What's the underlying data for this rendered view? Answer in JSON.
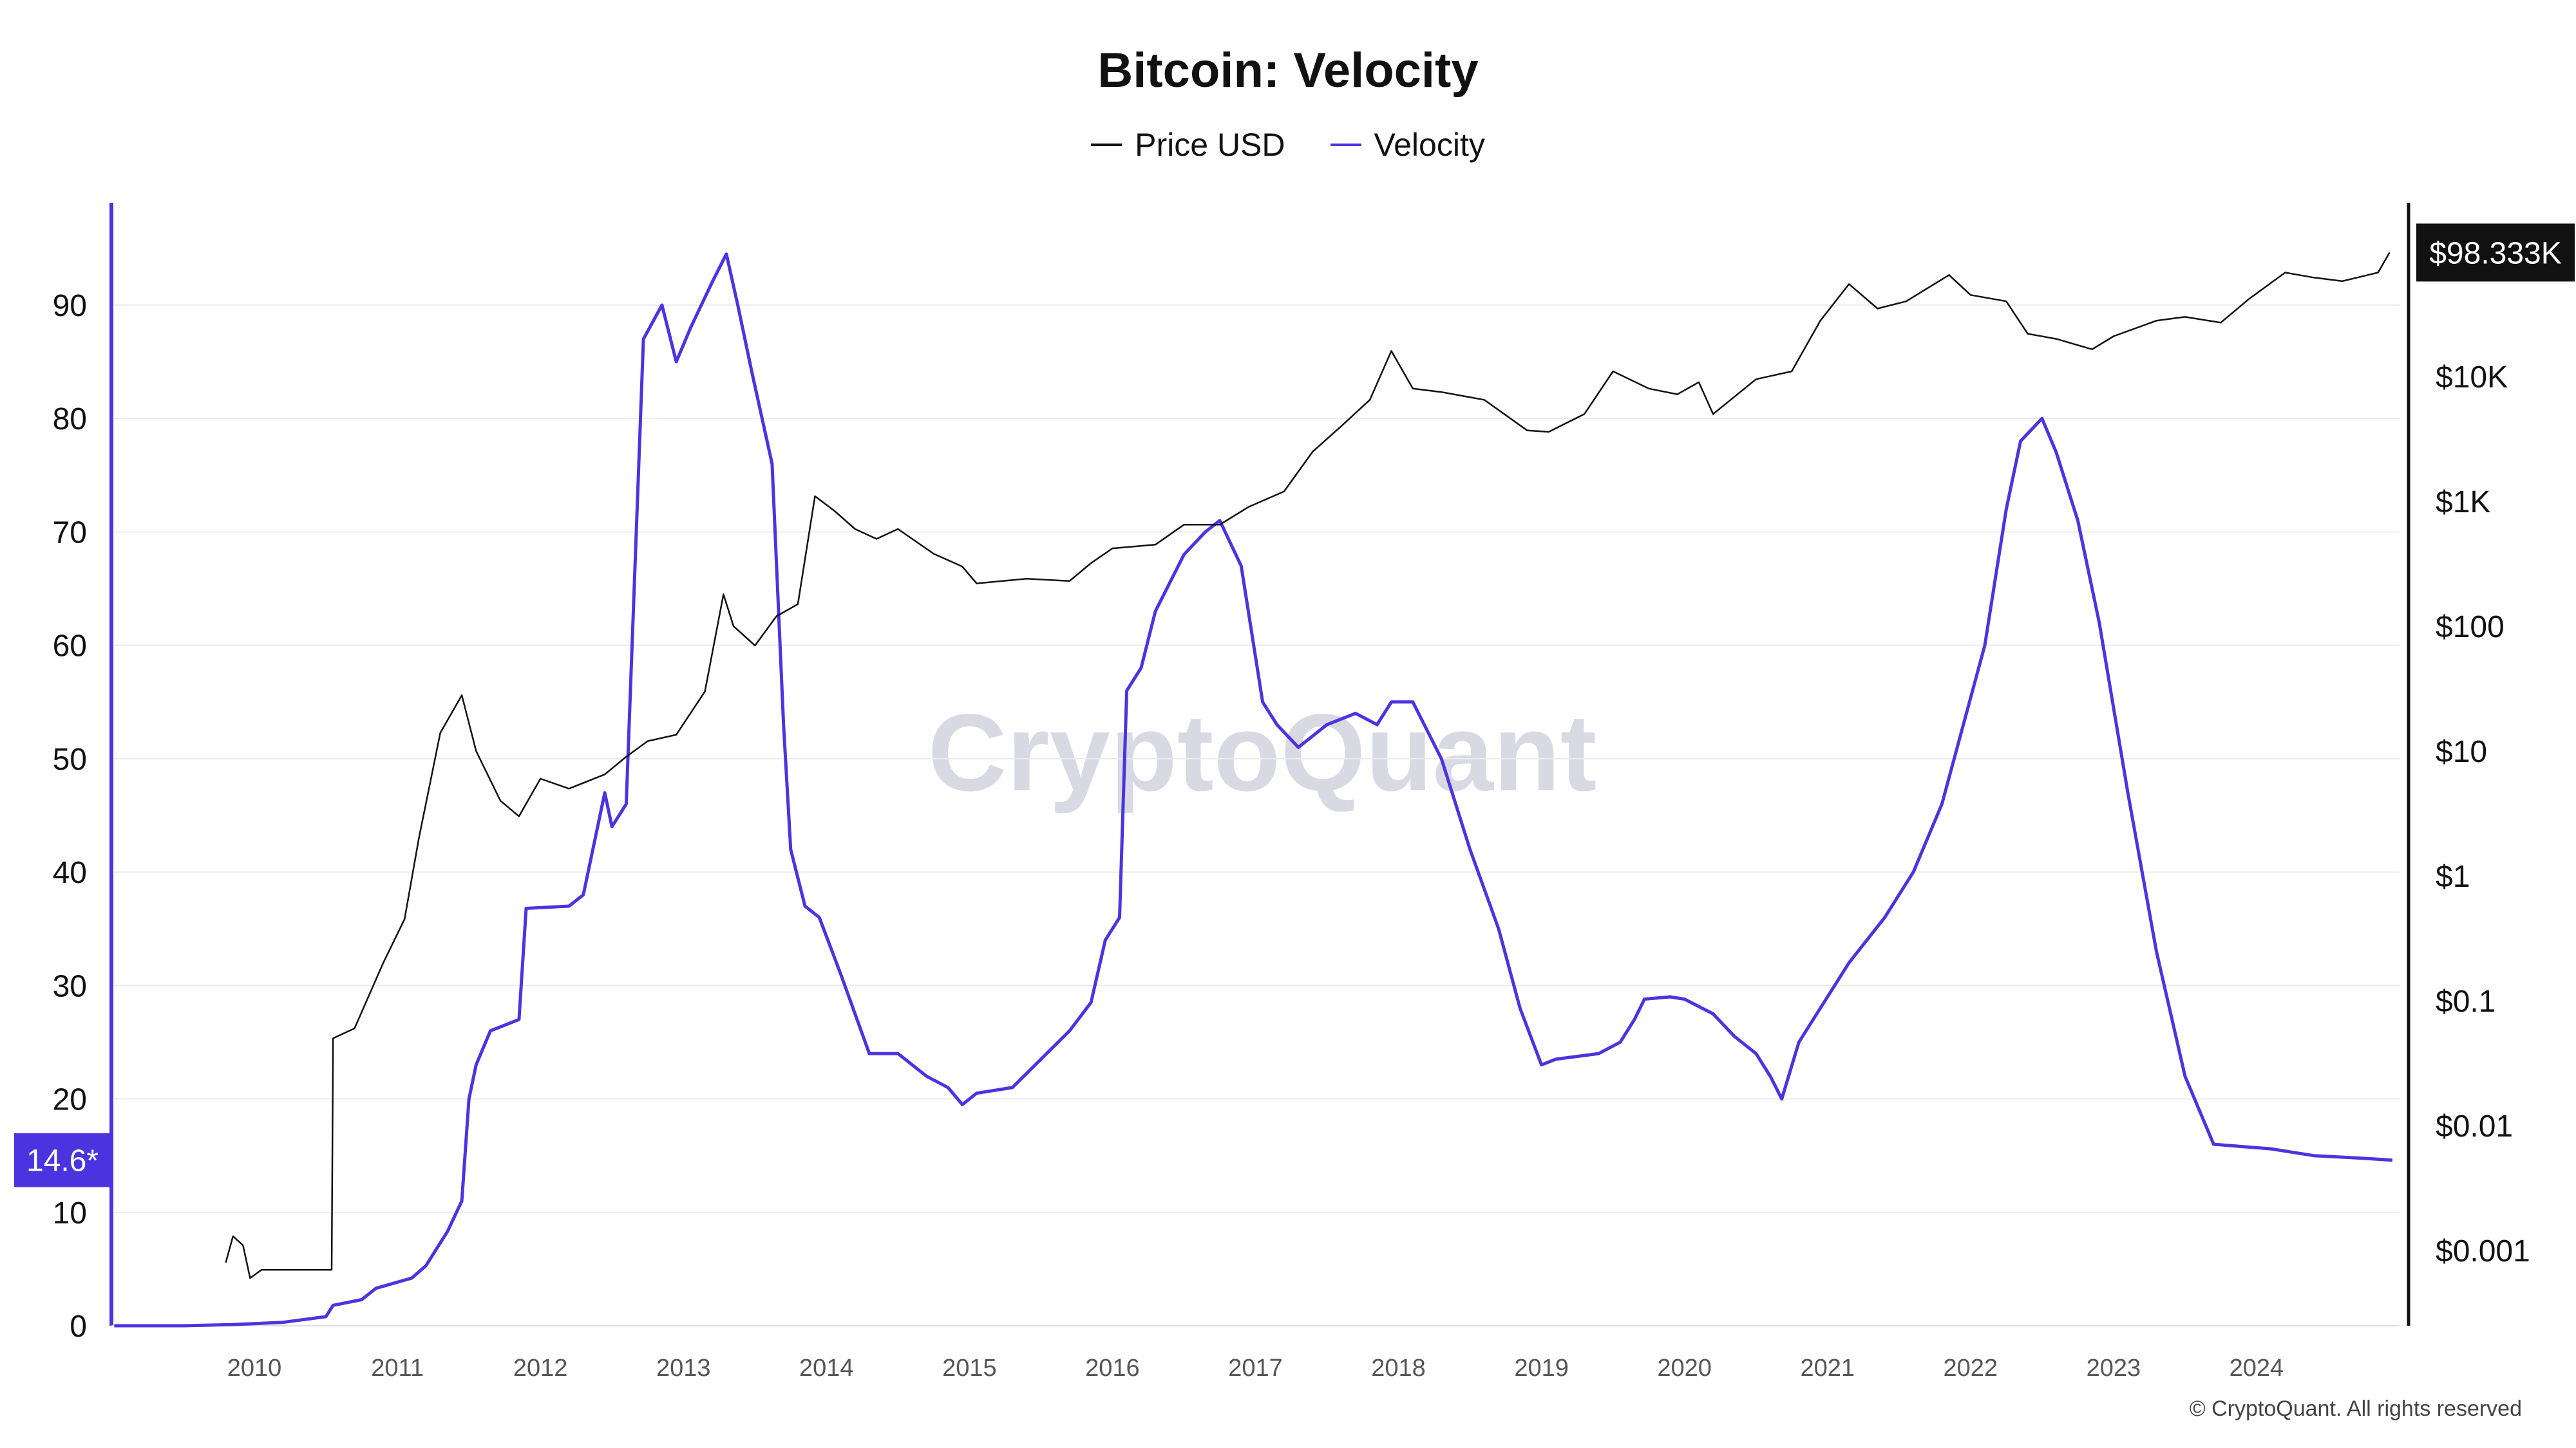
{
  "title": "Bitcoin: Velocity",
  "legend": [
    {
      "name": "Price USD",
      "color": "#111111"
    },
    {
      "name": "Velocity",
      "color": "#4b34e0"
    }
  ],
  "watermark": "CryptoQuant",
  "copyright": "© CryptoQuant. All rights reserved",
  "colors": {
    "velocity": "#4b34e0",
    "price": "#111111",
    "grid": "#ececec"
  },
  "chart_data": {
    "type": "line",
    "title": "Bitcoin: Velocity",
    "x_ticks": [
      "2010",
      "2011",
      "2012",
      "2013",
      "2014",
      "2015",
      "2016",
      "2017",
      "2018",
      "2019",
      "2020",
      "2021",
      "2022",
      "2023",
      "2024"
    ],
    "xlim": [
      2009.0,
      2025.0
    ],
    "left_axis": {
      "ticks": [
        0,
        10,
        20,
        30,
        40,
        50,
        60,
        70,
        80,
        90
      ],
      "ylim": [
        0,
        99
      ],
      "current_label": "14.6*",
      "current_value": 14.6
    },
    "right_axis": {
      "scale": "log",
      "ticks": [
        "$0.001",
        "$0.01",
        "$0.1",
        "$1",
        "$10",
        "$100",
        "$1K",
        "$10K"
      ],
      "tick_values": [
        0.001,
        0.01,
        0.1,
        1,
        10,
        100,
        1000,
        10000
      ],
      "current_label": "$98.333K",
      "current_value": 98333
    },
    "grid": true,
    "legend_position": "top-center",
    "series": [
      {
        "name": "Velocity",
        "axis": "left",
        "points": [
          [
            2009.02,
            0
          ],
          [
            2009.5,
            0
          ],
          [
            2009.85,
            0.1
          ],
          [
            2010.2,
            0.3
          ],
          [
            2010.5,
            0.8
          ],
          [
            2010.55,
            1.8
          ],
          [
            2010.75,
            2.3
          ],
          [
            2010.85,
            3.3
          ],
          [
            2011.1,
            4.2
          ],
          [
            2011.2,
            5.3
          ],
          [
            2011.35,
            8.3
          ],
          [
            2011.45,
            11
          ],
          [
            2011.5,
            20
          ],
          [
            2011.55,
            23
          ],
          [
            2011.65,
            26
          ],
          [
            2011.85,
            27
          ],
          [
            2011.9,
            36.8
          ],
          [
            2012.2,
            37
          ],
          [
            2012.3,
            38
          ],
          [
            2012.4,
            44
          ],
          [
            2012.45,
            47
          ],
          [
            2012.5,
            44
          ],
          [
            2012.6,
            46
          ],
          [
            2012.72,
            87
          ],
          [
            2012.85,
            90
          ],
          [
            2012.95,
            85
          ],
          [
            2013.05,
            88
          ],
          [
            2013.2,
            92
          ],
          [
            2013.3,
            94.5
          ],
          [
            2013.38,
            90
          ],
          [
            2013.48,
            84
          ],
          [
            2013.62,
            76
          ],
          [
            2013.7,
            53
          ],
          [
            2013.75,
            42
          ],
          [
            2013.85,
            37
          ],
          [
            2013.95,
            36
          ],
          [
            2014.1,
            31
          ],
          [
            2014.3,
            24
          ],
          [
            2014.5,
            24
          ],
          [
            2014.7,
            22
          ],
          [
            2014.85,
            21
          ],
          [
            2014.95,
            19.5
          ],
          [
            2015.05,
            20.5
          ],
          [
            2015.3,
            21
          ],
          [
            2015.5,
            23.5
          ],
          [
            2015.7,
            26
          ],
          [
            2015.85,
            28.5
          ],
          [
            2015.95,
            34
          ],
          [
            2016.05,
            36
          ],
          [
            2016.1,
            56
          ],
          [
            2016.2,
            58
          ],
          [
            2016.3,
            63
          ],
          [
            2016.5,
            68
          ],
          [
            2016.65,
            70
          ],
          [
            2016.75,
            71
          ],
          [
            2016.9,
            67
          ],
          [
            2017.05,
            55
          ],
          [
            2017.15,
            53
          ],
          [
            2017.3,
            51
          ],
          [
            2017.5,
            53
          ],
          [
            2017.7,
            54
          ],
          [
            2017.85,
            53
          ],
          [
            2017.95,
            55
          ],
          [
            2018.1,
            55
          ],
          [
            2018.3,
            50
          ],
          [
            2018.5,
            42
          ],
          [
            2018.7,
            35
          ],
          [
            2018.85,
            28
          ],
          [
            2019.0,
            23
          ],
          [
            2019.1,
            23.5
          ],
          [
            2019.4,
            24
          ],
          [
            2019.55,
            25
          ],
          [
            2019.65,
            27
          ],
          [
            2019.72,
            28.8
          ],
          [
            2019.9,
            29
          ],
          [
            2020.0,
            28.8
          ],
          [
            2020.2,
            27.5
          ],
          [
            2020.35,
            25.5
          ],
          [
            2020.5,
            24
          ],
          [
            2020.6,
            22
          ],
          [
            2020.68,
            20
          ],
          [
            2020.8,
            25
          ],
          [
            2020.95,
            28
          ],
          [
            2021.15,
            32
          ],
          [
            2021.4,
            36
          ],
          [
            2021.6,
            40
          ],
          [
            2021.8,
            46
          ],
          [
            2021.95,
            53
          ],
          [
            2022.1,
            60
          ],
          [
            2022.25,
            72
          ],
          [
            2022.35,
            78
          ],
          [
            2022.5,
            80
          ],
          [
            2022.6,
            77
          ],
          [
            2022.75,
            71
          ],
          [
            2022.9,
            62
          ],
          [
            2023.1,
            47
          ],
          [
            2023.3,
            33
          ],
          [
            2023.5,
            22
          ],
          [
            2023.7,
            16
          ],
          [
            2023.9,
            15.8
          ],
          [
            2024.1,
            15.6
          ],
          [
            2024.4,
            15
          ],
          [
            2024.7,
            14.8
          ],
          [
            2024.95,
            14.6
          ]
        ]
      },
      {
        "name": "Price USD",
        "axis": "right",
        "points": [
          [
            2009.8,
            0.0008
          ],
          [
            2009.85,
            0.0013
          ],
          [
            2009.92,
            0.0011
          ],
          [
            2009.97,
            0.0006
          ],
          [
            2010.05,
            0.0007
          ],
          [
            2010.54,
            0.0007
          ],
          [
            2010.55,
            0.05
          ],
          [
            2010.7,
            0.06
          ],
          [
            2010.9,
            0.2
          ],
          [
            2011.05,
            0.45
          ],
          [
            2011.15,
            2
          ],
          [
            2011.3,
            14
          ],
          [
            2011.45,
            28
          ],
          [
            2011.55,
            10
          ],
          [
            2011.72,
            4
          ],
          [
            2011.85,
            3
          ],
          [
            2012.0,
            6
          ],
          [
            2012.2,
            5
          ],
          [
            2012.45,
            6.5
          ],
          [
            2012.6,
            9
          ],
          [
            2012.75,
            12
          ],
          [
            2012.95,
            13.5
          ],
          [
            2013.15,
            30
          ],
          [
            2013.28,
            180
          ],
          [
            2013.35,
            100
          ],
          [
            2013.5,
            70
          ],
          [
            2013.65,
            120
          ],
          [
            2013.8,
            150
          ],
          [
            2013.92,
            1100
          ],
          [
            2014.05,
            850
          ],
          [
            2014.2,
            600
          ],
          [
            2014.35,
            500
          ],
          [
            2014.5,
            600
          ],
          [
            2014.75,
            380
          ],
          [
            2014.95,
            300
          ],
          [
            2015.05,
            220
          ],
          [
            2015.4,
            240
          ],
          [
            2015.7,
            230
          ],
          [
            2015.85,
            320
          ],
          [
            2016.0,
            420
          ],
          [
            2016.3,
            450
          ],
          [
            2016.5,
            650
          ],
          [
            2016.75,
            650
          ],
          [
            2016.95,
            900
          ],
          [
            2017.2,
            1200
          ],
          [
            2017.4,
            2500
          ],
          [
            2017.6,
            4000
          ],
          [
            2017.8,
            6500
          ],
          [
            2017.95,
            16000
          ],
          [
            2018.1,
            8000
          ],
          [
            2018.3,
            7500
          ],
          [
            2018.6,
            6500
          ],
          [
            2018.9,
            3700
          ],
          [
            2019.05,
            3600
          ],
          [
            2019.3,
            5000
          ],
          [
            2019.5,
            11000
          ],
          [
            2019.75,
            8000
          ],
          [
            2019.95,
            7200
          ],
          [
            2020.1,
            9000
          ],
          [
            2020.2,
            5000
          ],
          [
            2020.5,
            9500
          ],
          [
            2020.75,
            11000
          ],
          [
            2020.95,
            28000
          ],
          [
            2021.15,
            55000
          ],
          [
            2021.35,
            35000
          ],
          [
            2021.55,
            40000
          ],
          [
            2021.85,
            65000
          ],
          [
            2022.0,
            45000
          ],
          [
            2022.25,
            40000
          ],
          [
            2022.4,
            22000
          ],
          [
            2022.6,
            20000
          ],
          [
            2022.85,
            16500
          ],
          [
            2023.0,
            21000
          ],
          [
            2023.3,
            28000
          ],
          [
            2023.5,
            30000
          ],
          [
            2023.75,
            27000
          ],
          [
            2023.95,
            42000
          ],
          [
            2024.2,
            68000
          ],
          [
            2024.4,
            62000
          ],
          [
            2024.6,
            58000
          ],
          [
            2024.85,
            68000
          ],
          [
            2024.93,
            98333
          ]
        ]
      }
    ]
  }
}
